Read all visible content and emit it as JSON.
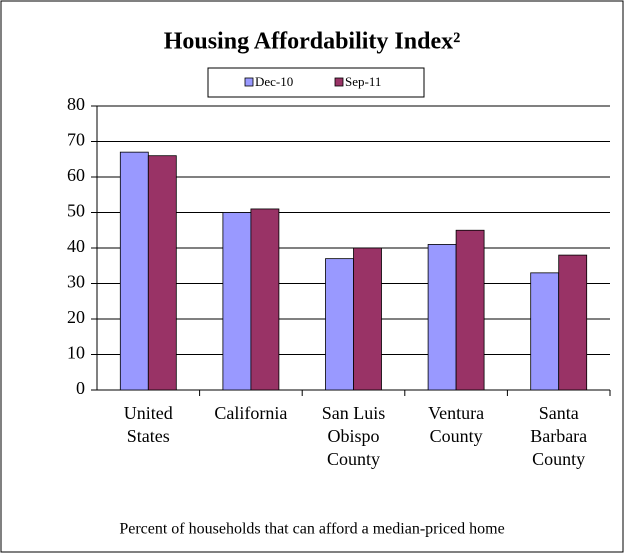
{
  "chart_data": {
    "type": "bar",
    "title": "Housing Affordability Index²",
    "categories": [
      "United States",
      "California",
      "San Luis Obispo County",
      "Ventura County",
      "Santa Barbara County"
    ],
    "series": [
      {
        "name": "Dec-10",
        "color": "#9999ff",
        "values": [
          67,
          50,
          37,
          41,
          33
        ]
      },
      {
        "name": "Sep-11",
        "color": "#993366",
        "values": [
          66,
          51,
          40,
          45,
          38
        ]
      }
    ],
    "ylim": [
      0,
      80
    ],
    "yticks": [
      0,
      10,
      20,
      30,
      40,
      50,
      60,
      70,
      80
    ],
    "grid": true,
    "legend": "top",
    "caption": "Percent of households that can afford a median-priced home"
  }
}
